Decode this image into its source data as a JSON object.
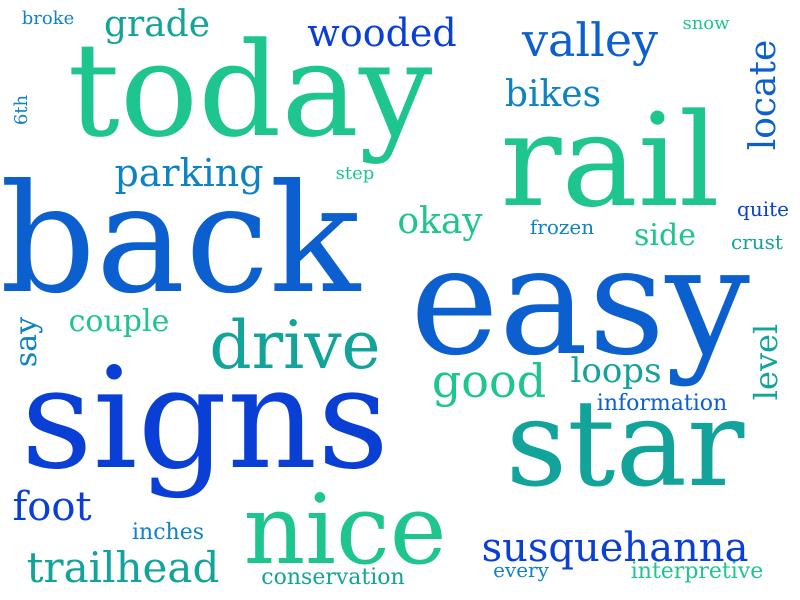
{
  "colors": {
    "teal": "#12a39a",
    "mint": "#1fc58f",
    "blue": "#0b5fce",
    "royal": "#0a3fd6",
    "sky": "#0d82c4"
  },
  "words": {
    "today": "today",
    "rail": "rail",
    "back": "back",
    "easy": "easy",
    "signs": "signs",
    "star": "star",
    "nice": "nice",
    "drive": "drive",
    "susquehanna": "susquehanna",
    "trailhead": "trailhead",
    "wooded": "wooded",
    "valley": "valley",
    "grade": "grade",
    "broke": "broke",
    "snow": "snow",
    "sixth": "6th",
    "locate": "locate",
    "bikes": "bikes",
    "parking": "parking",
    "step": "step",
    "okay": "okay",
    "frozen": "frozen",
    "side": "side",
    "quite": "quite",
    "crust": "crust",
    "couple": "couple",
    "say": "say",
    "good": "good",
    "loops": "loops",
    "level": "level",
    "information": "information",
    "foot": "foot",
    "inches": "inches",
    "conservation": "conservation",
    "every": "every",
    "interpretive": "interpretive"
  }
}
